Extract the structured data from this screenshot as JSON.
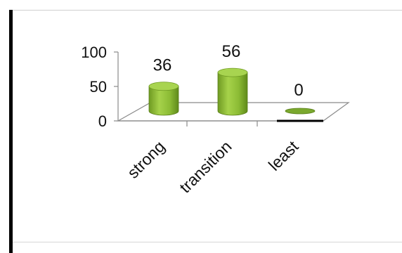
{
  "chart_data": {
    "type": "bar",
    "categories": [
      "strong",
      "transition",
      "least"
    ],
    "values": [
      36,
      56,
      0
    ],
    "data_labels": [
      "36",
      "56",
      "0"
    ],
    "ylim": [
      0,
      100
    ],
    "yticks": [
      "0",
      "50",
      "100"
    ],
    "title": "",
    "xlabel": "",
    "ylabel": "",
    "style": "3d-cylinder",
    "grid": false,
    "legend": "none",
    "bar_color": "#8fbf3c",
    "bar_top_color": "#a8d450"
  }
}
